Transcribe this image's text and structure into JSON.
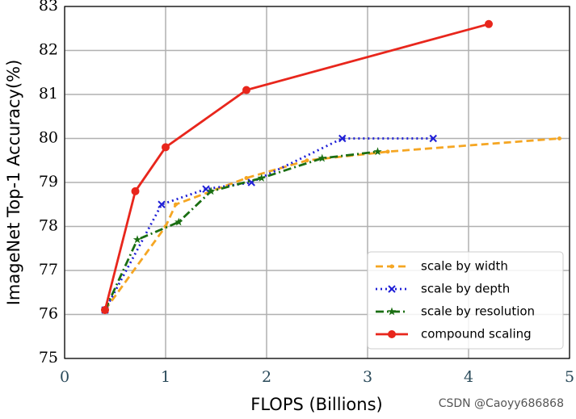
{
  "chart_data": {
    "type": "line",
    "x_label": "FLOPS (Billions)",
    "y_label": "ImageNet Top-1 Accuracy(%)",
    "watermark": "CSDN @Caoyy686868",
    "xlim": [
      0,
      5
    ],
    "ylim": [
      75,
      83
    ],
    "xticks": [
      0,
      1,
      2,
      3,
      4,
      5
    ],
    "yticks": [
      75,
      76,
      77,
      78,
      79,
      80,
      81,
      82,
      83
    ],
    "grid": true,
    "legend": "lower right",
    "series": [
      {
        "name": "scale by width",
        "color": "#f5a623",
        "linestyle": "dashed",
        "marker": "dot",
        "x": [
          0.4,
          1.0,
          1.1,
          1.8,
          2.4,
          3.2,
          4.9
        ],
        "values": [
          76.1,
          78.0,
          78.5,
          79.1,
          79.5,
          79.7,
          80.0
        ]
      },
      {
        "name": "scale by depth",
        "color": "#1f1fd6",
        "linestyle": "dotted",
        "marker": "x",
        "x": [
          0.4,
          0.96,
          1.4,
          1.85,
          2.75,
          3.65
        ],
        "values": [
          76.1,
          78.5,
          78.85,
          79.0,
          80.0,
          80.0
        ]
      },
      {
        "name": "scale by resolution",
        "color": "#1a6e12",
        "linestyle": "dashdot",
        "marker": "star",
        "x": [
          0.4,
          0.72,
          1.13,
          1.45,
          1.95,
          2.55,
          3.1
        ],
        "values": [
          76.1,
          77.7,
          78.1,
          78.8,
          79.1,
          79.55,
          79.7
        ]
      },
      {
        "name": "compound scaling",
        "color": "#e8261c",
        "linestyle": "solid",
        "marker": "circle",
        "x": [
          0.4,
          0.7,
          1.0,
          1.8,
          4.2
        ],
        "values": [
          76.1,
          78.8,
          79.8,
          81.1,
          82.6
        ]
      }
    ]
  }
}
